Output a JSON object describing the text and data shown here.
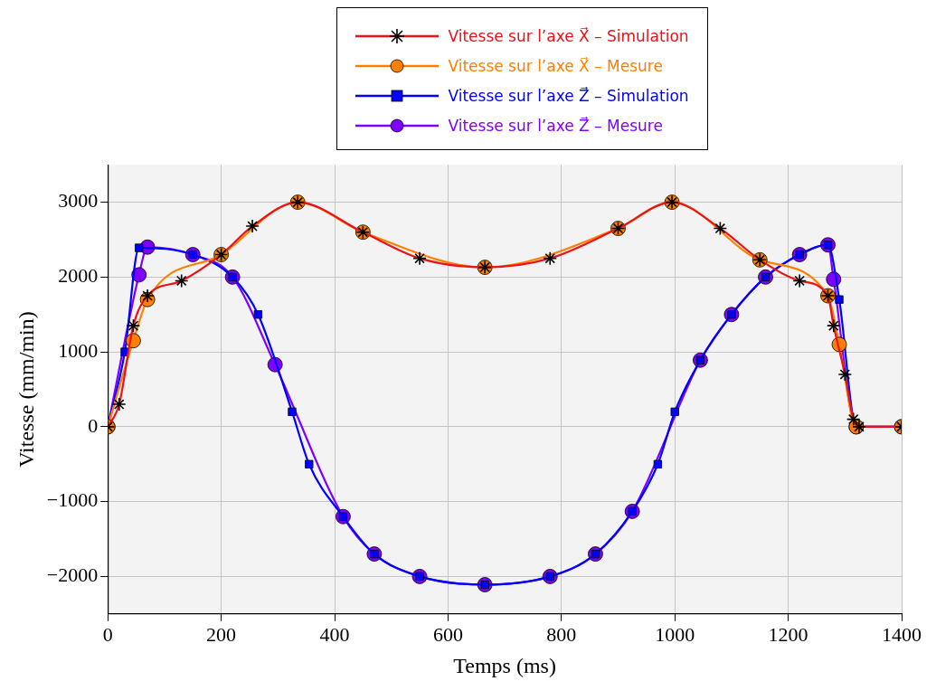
{
  "chart_data": {
    "type": "line",
    "xlabel": "Temps (ms)",
    "ylabel": "Vitesse (mm/min)",
    "xlim": [
      0,
      1400
    ],
    "xticks": [
      0,
      200,
      400,
      600,
      800,
      1000,
      1200,
      1400
    ],
    "ylim": [
      -2500,
      3500
    ],
    "yticks": [
      -2000,
      -1000,
      0,
      1000,
      2000,
      3000
    ],
    "grid": true,
    "legend": "top",
    "line_style": "solid",
    "series": [
      {
        "name": "Vitesse sur l’axe X⃗ – Simulation",
        "color": "#e8141a",
        "marker": "cross",
        "x": [
          0,
          20,
          45,
          70,
          130,
          200,
          255,
          335,
          450,
          550,
          665,
          780,
          900,
          995,
          1080,
          1150,
          1220,
          1270,
          1280,
          1300,
          1315,
          1325,
          1400
        ],
        "values": [
          0,
          300,
          1350,
          1750,
          1950,
          2300,
          2680,
          3000,
          2600,
          2250,
          2130,
          2250,
          2650,
          3000,
          2650,
          2230,
          1950,
          1750,
          1350,
          700,
          100,
          0,
          0
        ]
      },
      {
        "name": "Vitesse sur l’axe X⃗ – Mesure",
        "color": "#ff8000",
        "marker": "circle",
        "x": [
          0,
          45,
          70,
          200,
          335,
          450,
          665,
          900,
          995,
          1150,
          1270,
          1290,
          1320,
          1400
        ],
        "values": [
          0,
          1150,
          1700,
          2300,
          3000,
          2600,
          2130,
          2650,
          3000,
          2230,
          1750,
          1100,
          0,
          0
        ]
      },
      {
        "name": "Vitesse sur l’axe Z⃗ – Simulation",
        "color": "#0000ff",
        "marker": "square",
        "x": [
          0,
          30,
          55,
          150,
          220,
          265,
          325,
          355,
          415,
          470,
          550,
          665,
          780,
          860,
          925,
          970,
          1000,
          1045,
          1100,
          1160,
          1220,
          1270,
          1290,
          1320,
          1400
        ],
        "values": [
          0,
          1000,
          2390,
          2300,
          2000,
          1500,
          200,
          -500,
          -1200,
          -1700,
          -2000,
          -2110,
          -2000,
          -1700,
          -1130,
          -500,
          200,
          890,
          1500,
          2000,
          2300,
          2430,
          1700,
          0,
          0
        ]
      },
      {
        "name": "Vitesse sur l’axe Z⃗ – Mesure",
        "color": "#8000ff",
        "marker": "circle",
        "x": [
          0,
          55,
          70,
          150,
          220,
          295,
          415,
          470,
          550,
          665,
          780,
          860,
          925,
          1045,
          1100,
          1160,
          1220,
          1270,
          1280,
          1320,
          1400
        ],
        "values": [
          0,
          2030,
          2400,
          2300,
          2000,
          830,
          -1200,
          -1700,
          -2000,
          -2110,
          -2000,
          -1700,
          -1130,
          890,
          1500,
          2000,
          2300,
          2430,
          1970,
          0,
          0
        ]
      }
    ]
  }
}
